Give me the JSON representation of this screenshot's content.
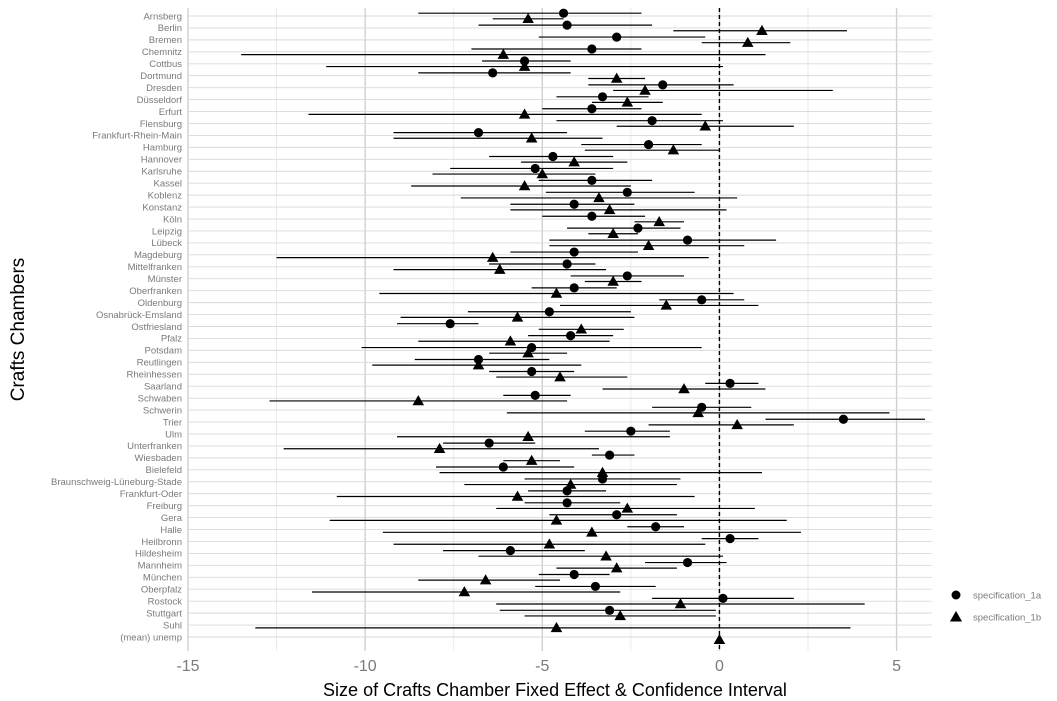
{
  "chart_data": {
    "type": "scatter",
    "title": "",
    "xlabel": "Size of Crafts Chamber Fixed Effect & Confidence Interval",
    "ylabel": "Crafts Chambers",
    "xlim": [
      -15,
      6
    ],
    "x_ticks": [
      -15,
      -10,
      -5,
      0,
      5
    ],
    "x_tick_labels": [
      "-15",
      "-10",
      "-5",
      "0",
      "5"
    ],
    "reference_line_x": 0,
    "grid": true,
    "legend_position": "right",
    "categories": [
      "Arnsberg",
      "Berlin",
      "Bremen",
      "Chemnitz",
      "Cottbus",
      "Dortmund",
      "Dresden",
      "Düsseldorf",
      "Erfurt",
      "Flensburg",
      "Frankfurt-Rhein-Main",
      "Hamburg",
      "Hannover",
      "Karlsruhe",
      "Kassel",
      "Koblenz",
      "Konstanz",
      "Köln",
      "Leipzig",
      "Lübeck",
      "Magdeburg",
      "Mittelfranken",
      "Münster",
      "Oberfranken",
      "Oldenburg",
      "Osnabrück-Emsland",
      "Ostfriesland",
      "Pfalz",
      "Potsdam",
      "Reutlingen",
      "Rheinhessen",
      "Saarland",
      "Schwaben",
      "Schwerin",
      "Trier",
      "Ulm",
      "Unterfranken",
      "Wiesbaden",
      "Bielefeld",
      "Braunschweig-Lüneburg-Stade",
      "Frankfurt-Oder",
      "Freiburg",
      "Gera",
      "Halle",
      "Heilbronn",
      "Hildesheim",
      "Mannheim",
      "München",
      "Oberpfalz",
      "Rostock",
      "Stuttgart",
      "Suhl",
      "(mean) unemp"
    ],
    "series": [
      {
        "name": "specification_1a",
        "marker": "circle",
        "estimate": [
          -4.4,
          -4.3,
          -2.9,
          -3.6,
          -5.5,
          -6.4,
          -1.6,
          -3.3,
          -3.6,
          -1.9,
          -6.8,
          -2.0,
          -4.7,
          -5.2,
          -3.6,
          -2.6,
          -4.1,
          -3.6,
          -2.3,
          -0.9,
          -4.1,
          -4.3,
          -2.6,
          -4.1,
          -0.5,
          -4.8,
          -7.6,
          -4.2,
          -5.3,
          -6.8,
          -5.3,
          0.3,
          -5.2,
          -0.5,
          3.5,
          -2.5,
          -6.5,
          -3.1,
          -6.1,
          -3.3,
          -4.3,
          -4.3,
          -2.9,
          -1.8,
          0.3,
          -5.9,
          -0.9,
          -4.1,
          -3.5,
          0.1,
          -3.1,
          null,
          null
        ],
        "ci_low": [
          -8.5,
          -6.8,
          -5.1,
          -7.0,
          -6.7,
          -8.5,
          -3.7,
          -4.6,
          -5.0,
          -4.6,
          -9.2,
          -3.9,
          -6.5,
          -7.6,
          -5.1,
          -4.9,
          -5.9,
          -5.0,
          -4.3,
          -4.8,
          -5.9,
          -6.5,
          -4.2,
          -5.3,
          -1.7,
          -7.1,
          -9.1,
          -5.4,
          -10.1,
          -8.6,
          -6.5,
          -0.4,
          -6.1,
          -1.9,
          1.3,
          -3.8,
          -7.8,
          -3.6,
          -8.0,
          -5.5,
          -5.4,
          -5.5,
          -4.8,
          -2.6,
          -0.5,
          -7.8,
          -2.1,
          -5.1,
          -5.2,
          -1.9,
          -6.2,
          null,
          null
        ],
        "ci_high": [
          -2.2,
          -1.9,
          -0.4,
          -2.2,
          -4.2,
          -4.2,
          0.4,
          -2.0,
          -2.2,
          0.1,
          -4.3,
          -0.5,
          -3.0,
          -3.0,
          -1.9,
          -0.7,
          -2.4,
          -2.1,
          -1.1,
          1.6,
          -2.3,
          -3.5,
          -1.0,
          -2.9,
          0.7,
          -2.5,
          -6.8,
          -3.0,
          -0.5,
          -4.8,
          -4.1,
          1.1,
          -4.2,
          0.9,
          5.8,
          -1.4,
          -5.2,
          -2.4,
          -4.1,
          -1.1,
          -3.2,
          -2.8,
          -1.2,
          -1.0,
          1.1,
          -3.8,
          0.2,
          -3.1,
          -1.8,
          2.1,
          -0.1,
          null,
          null
        ]
      },
      {
        "name": "specification_1b",
        "marker": "triangle",
        "estimate": [
          -5.4,
          1.2,
          0.8,
          -6.1,
          -5.5,
          -2.9,
          -2.1,
          -2.6,
          -5.5,
          -0.4,
          -5.3,
          -1.3,
          -4.1,
          -5.0,
          -5.5,
          -3.4,
          -3.1,
          -1.7,
          -3.0,
          -2.0,
          -6.4,
          -6.2,
          -3.0,
          -4.6,
          -1.5,
          -5.7,
          -3.9,
          -5.9,
          -5.4,
          -6.8,
          -4.5,
          -1.0,
          -8.5,
          -0.6,
          0.5,
          -5.4,
          -7.9,
          -5.3,
          -3.3,
          -4.2,
          -5.7,
          -2.6,
          -4.6,
          -3.6,
          -4.8,
          -3.2,
          -2.9,
          -6.6,
          -7.2,
          -1.1,
          -2.8,
          -4.6,
          0.0
        ],
        "ci_low": [
          -6.4,
          -1.3,
          -0.5,
          -13.5,
          -11.1,
          -3.7,
          -3.0,
          -3.6,
          -11.6,
          -2.9,
          -9.2,
          -3.8,
          -5.6,
          -8.1,
          -8.7,
          -7.3,
          -5.9,
          -2.4,
          -3.7,
          -4.8,
          -12.5,
          -9.2,
          -3.8,
          -9.6,
          -4.5,
          -9.0,
          -5.1,
          -8.5,
          -6.5,
          -9.8,
          -6.3,
          -3.3,
          -12.7,
          -6.0,
          -2.0,
          -9.1,
          -12.3,
          -6.1,
          -7.9,
          -7.2,
          -10.8,
          -6.3,
          -11.0,
          -9.5,
          -9.2,
          -6.8,
          -4.6,
          -8.5,
          -11.5,
          -6.3,
          -5.5,
          -13.1,
          0.0
        ],
        "ci_high": [
          -4.4,
          3.6,
          2.0,
          1.3,
          0.1,
          -2.1,
          3.2,
          -1.6,
          -0.5,
          2.1,
          -3.3,
          0.0,
          -2.6,
          -3.5,
          -2.5,
          0.5,
          0.2,
          -1.0,
          -2.3,
          0.7,
          -0.3,
          -3.2,
          -2.2,
          0.4,
          1.1,
          -2.4,
          -2.7,
          -3.1,
          -4.3,
          -3.9,
          -2.6,
          1.3,
          -4.3,
          4.8,
          2.1,
          -1.4,
          -3.4,
          -4.5,
          1.2,
          -1.2,
          -0.7,
          1.0,
          1.9,
          2.3,
          -0.4,
          0.1,
          -1.2,
          -4.5,
          -2.8,
          4.1,
          -0.1,
          3.7,
          0.0
        ]
      }
    ]
  }
}
